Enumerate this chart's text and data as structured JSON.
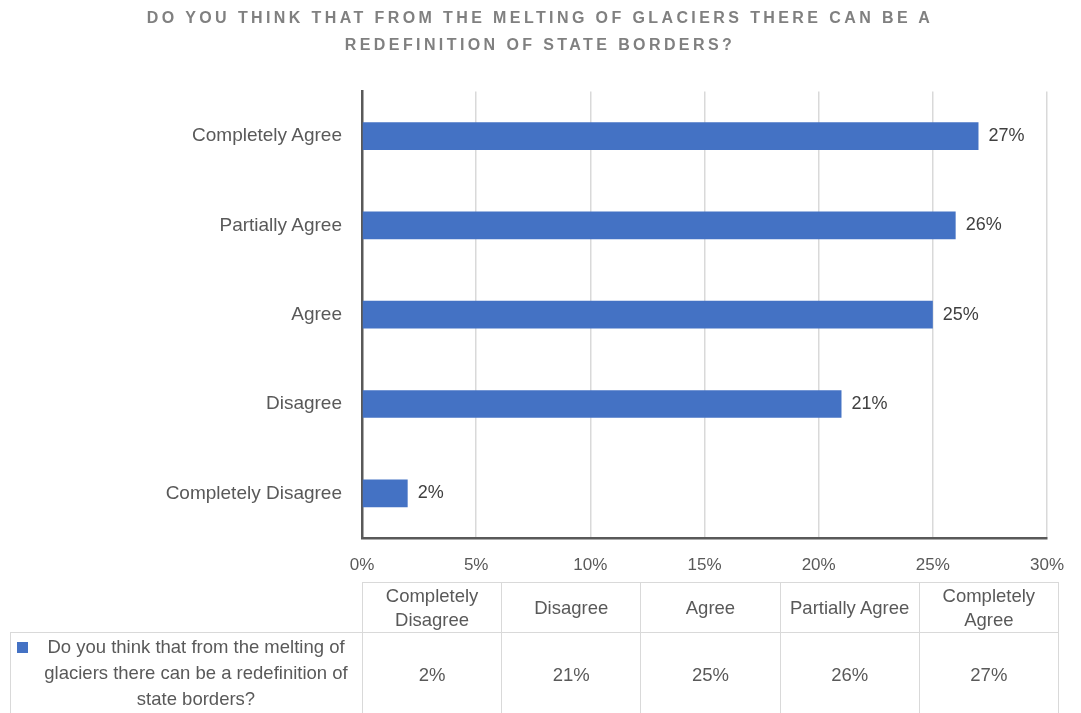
{
  "chart_data": {
    "type": "bar",
    "orientation": "horizontal",
    "title": "DO YOU THINK THAT FROM THE MELTING OF GLACIERS THERE CAN BE A REDEFINITION OF STATE BORDERS?",
    "categories": [
      "Completely Agree",
      "Partially Agree",
      "Agree",
      "Disagree",
      "Completely Disagree"
    ],
    "series": [
      {
        "name": "Do you think that from the melting of glaciers there can be a redefinition of state borders?",
        "color": "#4472c4",
        "values": [
          27,
          26,
          25,
          21,
          2
        ],
        "value_labels": [
          "27%",
          "26%",
          "25%",
          "21%",
          "2%"
        ]
      }
    ],
    "xlim": [
      0,
      30
    ],
    "xticks": [
      {
        "value": 0,
        "label": "0%"
      },
      {
        "value": 5,
        "label": "5%"
      },
      {
        "value": 10,
        "label": "10%"
      },
      {
        "value": 15,
        "label": "15%"
      },
      {
        "value": 20,
        "label": "20%"
      },
      {
        "value": 25,
        "label": "25%"
      },
      {
        "value": 30,
        "label": "30%"
      }
    ],
    "grid": "x",
    "legend": "bottom left"
  }
}
